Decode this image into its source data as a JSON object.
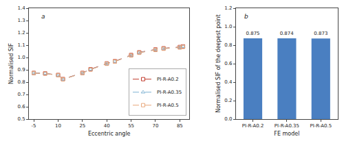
{
  "chart_data": [
    {
      "type": "line",
      "title": "a",
      "xlabel": "Eccentric angle",
      "ylabel": "Normalised SIF",
      "x": [
        -5,
        2,
        10,
        13,
        25,
        30,
        40,
        45,
        55,
        60,
        70,
        75,
        85,
        87
      ],
      "series": [
        {
          "name": "PI-R-A0.2",
          "color": "#c0392b",
          "marker": "square",
          "line_style": "dashed",
          "values": [
            0.875,
            0.871,
            0.858,
            0.825,
            0.875,
            0.905,
            0.952,
            0.97,
            1.02,
            1.042,
            1.065,
            1.075,
            1.085,
            1.09
          ]
        },
        {
          "name": "PI-R-A0.35",
          "color": "#7fb3d3",
          "marker": "triangle-up",
          "line_style": "dashed",
          "values": [
            0.874,
            0.87,
            0.857,
            0.823,
            0.874,
            0.903,
            0.95,
            0.968,
            1.018,
            1.04,
            1.063,
            1.073,
            1.083,
            1.088
          ]
        },
        {
          "name": "PI-R-A0.5",
          "color": "#e8a87c",
          "marker": "square",
          "line_style": "dashed",
          "values": [
            0.873,
            0.869,
            0.856,
            0.822,
            0.873,
            0.902,
            0.949,
            0.967,
            1.016,
            1.038,
            1.061,
            1.071,
            1.081,
            1.086
          ]
        }
      ],
      "xlim": [
        -8,
        91
      ],
      "xticks": [
        -5,
        10,
        25,
        40,
        55,
        70,
        85
      ],
      "ylim": [
        0.5,
        1.4
      ],
      "yticks": [
        0.5,
        0.6,
        0.7,
        0.8,
        0.9,
        {
          "value": 1.0,
          "label": "1.0"
        },
        1.1,
        1.2,
        1.3,
        1.4
      ],
      "legend": "lower right",
      "grid": false
    },
    {
      "type": "bar",
      "title": "b",
      "xlabel": "FE model",
      "ylabel": "Normalised SIF of the deepest point",
      "categories": [
        "PI-R-A0.2",
        "PI-R-A0.35",
        "PI-R-A0.5"
      ],
      "values": [
        0.875,
        0.874,
        0.873
      ],
      "color": "#4a7fc1",
      "data_labels": true,
      "ylim": [
        0,
        1.2
      ],
      "yticks": [
        {
          "value": 0,
          "label": "0.0"
        },
        0.2,
        0.4,
        0.6,
        0.8,
        {
          "value": 1.0,
          "label": "1.0"
        },
        1.2
      ],
      "grid": false
    }
  ]
}
